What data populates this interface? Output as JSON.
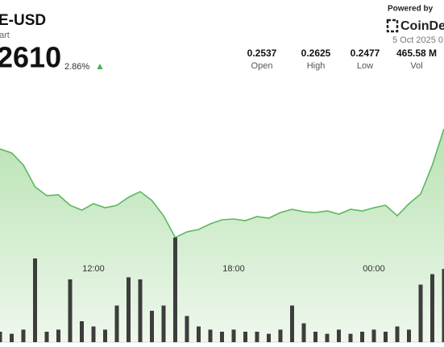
{
  "header": {
    "symbol": "E-USD",
    "subtitle": "art",
    "price": "2610",
    "change": "2.86%",
    "change_icon": "▲"
  },
  "stats": [
    {
      "value": "0.2537",
      "label": "Open"
    },
    {
      "value": "0.2625",
      "label": "High"
    },
    {
      "value": "0.2477",
      "label": "Low"
    },
    {
      "value": "465.58 M",
      "label": "Vol"
    }
  ],
  "branding": {
    "powered": "Powered by",
    "logo": "CoinDe",
    "date": "5 Oct 2025 0"
  },
  "chart_data": {
    "type": "area",
    "x": [
      8,
      8.5,
      9,
      9.5,
      10,
      10.5,
      11,
      11.5,
      12,
      12.5,
      13,
      13.5,
      14,
      14.5,
      15,
      15.5,
      16,
      16.5,
      17,
      17.5,
      18,
      18.5,
      19,
      19.5,
      20,
      20.5,
      21,
      21.5,
      22,
      22.5,
      23,
      23.5,
      24,
      24.5,
      25,
      25.5,
      26,
      26.5,
      27
    ],
    "xlim": [
      8,
      27
    ],
    "xticks": [
      {
        "value": 12,
        "label": "12:00"
      },
      {
        "value": 18,
        "label": "18:00"
      },
      {
        "value": 24,
        "label": "00:00"
      }
    ],
    "ylim": [
      0.245,
      0.265
    ],
    "y2lim": [
      0,
      100
    ],
    "series": [
      {
        "name": "Price",
        "color": "#5cb85c",
        "values": [
          0.2595,
          0.259,
          0.2575,
          0.2548,
          0.2537,
          0.2538,
          0.2525,
          0.2519,
          0.2527,
          0.2522,
          0.2525,
          0.2535,
          0.2542,
          0.2531,
          0.2512,
          0.2485,
          0.2492,
          0.2495,
          0.2502,
          0.2507,
          0.2508,
          0.2506,
          0.2511,
          0.2509,
          0.2516,
          0.252,
          0.2517,
          0.2516,
          0.2518,
          0.2514,
          0.252,
          0.2518,
          0.2522,
          0.2525,
          0.2512,
          0.2527,
          0.2539,
          0.2575,
          0.262
        ]
      },
      {
        "name": "Volume",
        "color": "#3d3d3d",
        "axis": "y2",
        "values": [
          10,
          8,
          12,
          80,
          10,
          12,
          60,
          20,
          15,
          12,
          35,
          62,
          60,
          30,
          35,
          100,
          25,
          15,
          12,
          10,
          12,
          10,
          10,
          8,
          12,
          35,
          18,
          10,
          8,
          12,
          8,
          10,
          12,
          10,
          15,
          12,
          55,
          65,
          70
        ]
      }
    ]
  }
}
